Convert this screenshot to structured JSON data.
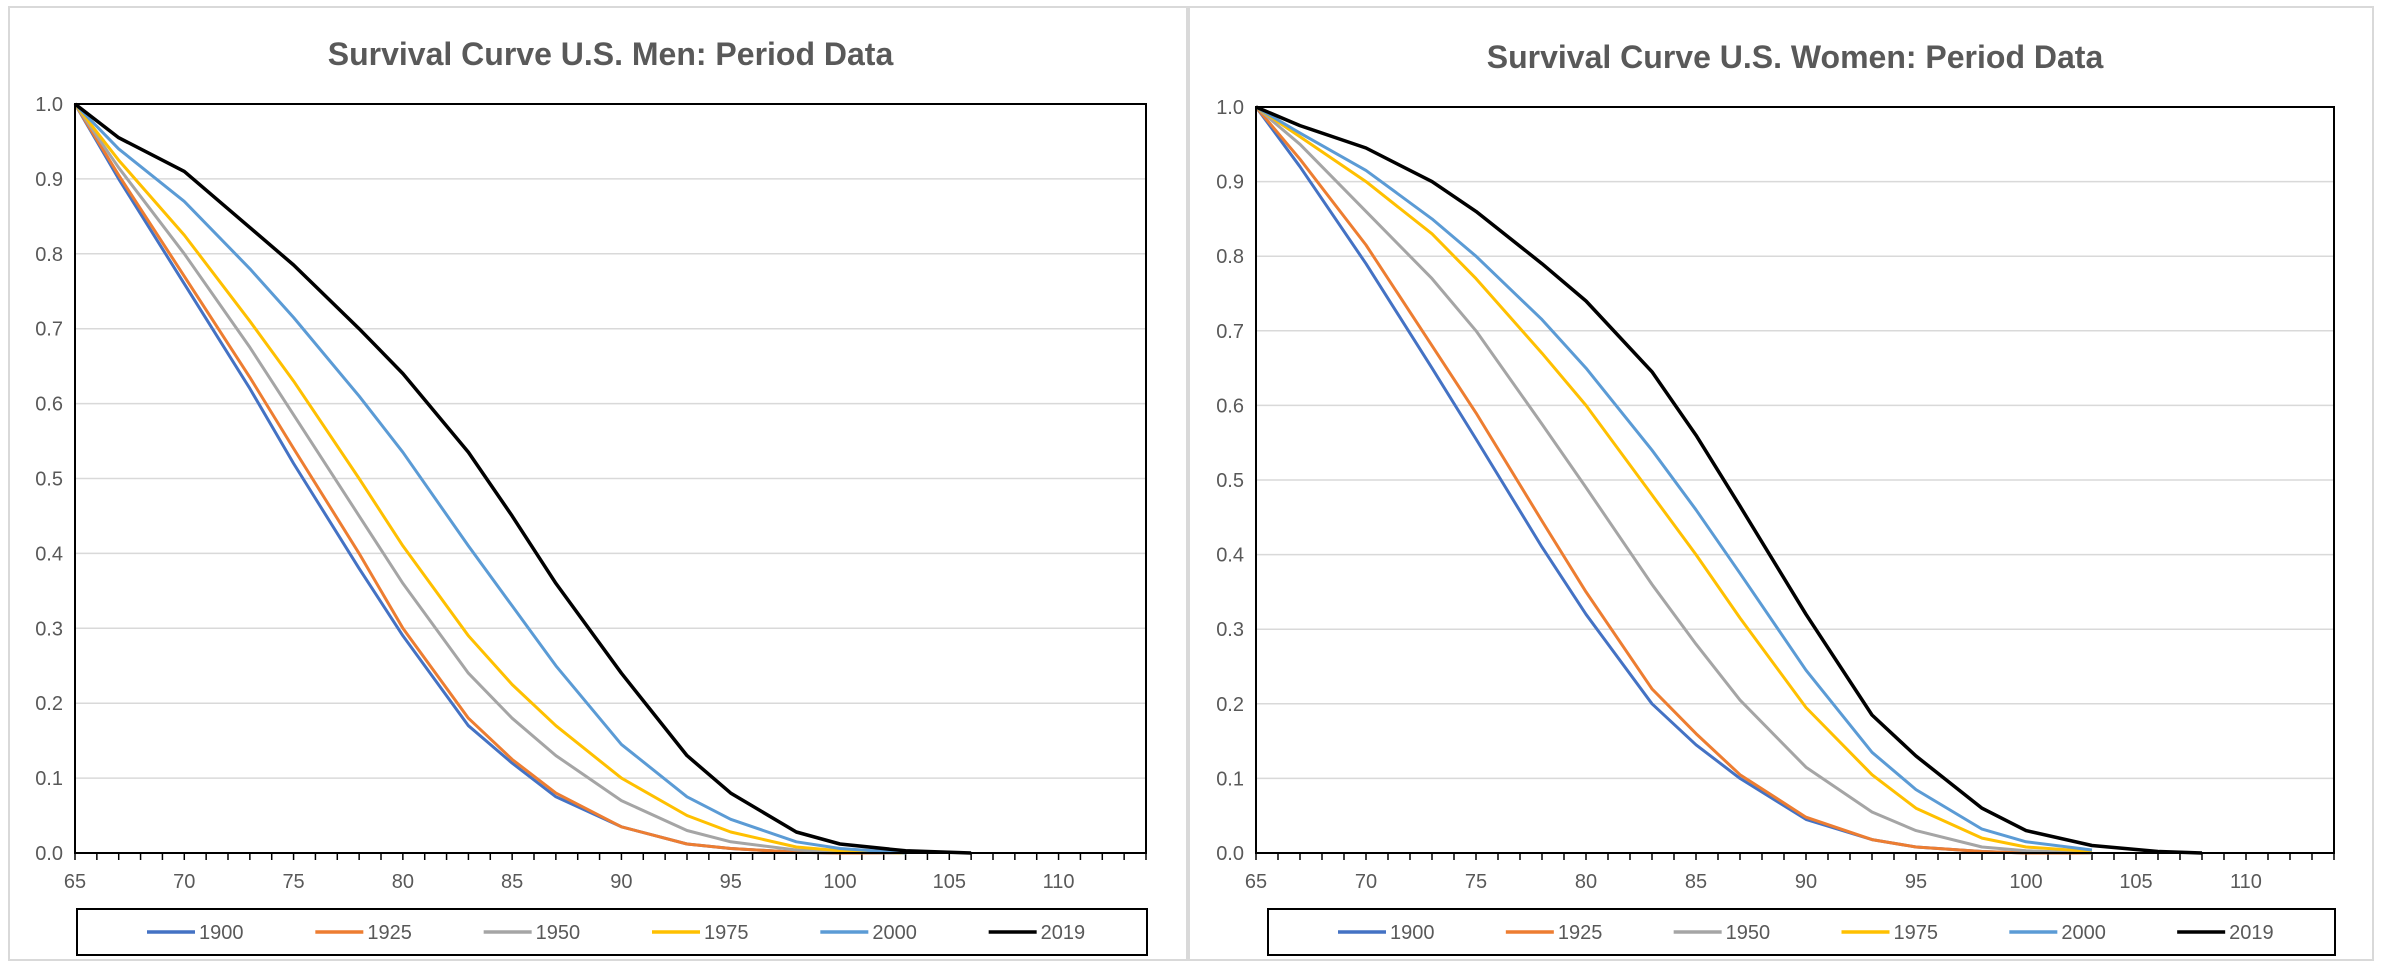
{
  "colors": {
    "1900": "#4472c4",
    "1925": "#ed7d31",
    "1950": "#a5a5a5",
    "1975": "#ffc000",
    "2000": "#5b9bd5",
    "2019": "#000000",
    "gridline": "#d9d9d9",
    "axis": "#000000",
    "title": "#595959",
    "tick_label": "#595959"
  },
  "chart_data": [
    {
      "type": "line",
      "title": "Survival Curve U.S. Men: Period Data",
      "xlabel": "",
      "ylabel": "",
      "xlim": [
        65,
        114
      ],
      "ylim": [
        0,
        1
      ],
      "x_ticks": [
        65,
        70,
        75,
        80,
        85,
        90,
        95,
        100,
        105,
        110
      ],
      "y_ticks": [
        "0.0",
        "0.1",
        "0.2",
        "0.3",
        "0.4",
        "0.5",
        "0.6",
        "0.7",
        "0.8",
        "0.9",
        "1.0"
      ],
      "grid": "horizontal",
      "legend_position": "bottom",
      "series": [
        {
          "name": "1900",
          "x": [
            65,
            67,
            70,
            73,
            75,
            78,
            80,
            83,
            85,
            87,
            90,
            93,
            95,
            98,
            100,
            103
          ],
          "values": [
            1.0,
            0.9,
            0.76,
            0.62,
            0.52,
            0.38,
            0.29,
            0.17,
            0.12,
            0.075,
            0.035,
            0.012,
            0.006,
            0.001,
            0.0,
            0.0
          ]
        },
        {
          "name": "1925",
          "x": [
            65,
            67,
            70,
            73,
            75,
            78,
            80,
            83,
            85,
            87,
            90,
            93,
            95,
            98,
            100,
            103
          ],
          "values": [
            1.0,
            0.905,
            0.77,
            0.635,
            0.54,
            0.4,
            0.3,
            0.18,
            0.125,
            0.08,
            0.035,
            0.012,
            0.006,
            0.001,
            0.0,
            0.0
          ]
        },
        {
          "name": "1950",
          "x": [
            65,
            67,
            70,
            73,
            75,
            78,
            80,
            83,
            85,
            87,
            90,
            93,
            95,
            98,
            100,
            103
          ],
          "values": [
            1.0,
            0.915,
            0.8,
            0.675,
            0.585,
            0.45,
            0.36,
            0.24,
            0.18,
            0.13,
            0.07,
            0.03,
            0.015,
            0.004,
            0.001,
            0.0
          ]
        },
        {
          "name": "1975",
          "x": [
            65,
            67,
            70,
            73,
            75,
            78,
            80,
            83,
            85,
            87,
            90,
            93,
            95,
            98,
            100,
            103
          ],
          "values": [
            1.0,
            0.925,
            0.825,
            0.71,
            0.63,
            0.5,
            0.41,
            0.29,
            0.225,
            0.17,
            0.1,
            0.05,
            0.028,
            0.008,
            0.003,
            0.0
          ]
        },
        {
          "name": "2000",
          "x": [
            65,
            67,
            70,
            73,
            75,
            78,
            80,
            83,
            85,
            87,
            90,
            93,
            95,
            98,
            100,
            103
          ],
          "values": [
            1.0,
            0.94,
            0.87,
            0.78,
            0.715,
            0.61,
            0.535,
            0.41,
            0.33,
            0.25,
            0.145,
            0.075,
            0.045,
            0.015,
            0.006,
            0.0
          ]
        },
        {
          "name": "2019",
          "x": [
            65,
            67,
            70,
            73,
            75,
            78,
            80,
            83,
            85,
            87,
            90,
            93,
            95,
            98,
            100,
            103,
            106
          ],
          "values": [
            1.0,
            0.955,
            0.91,
            0.835,
            0.785,
            0.7,
            0.64,
            0.535,
            0.45,
            0.36,
            0.24,
            0.13,
            0.08,
            0.028,
            0.012,
            0.003,
            0.0
          ]
        }
      ]
    },
    {
      "type": "line",
      "title": "Survival Curve U.S. Women: Period Data",
      "xlabel": "",
      "ylabel": "",
      "xlim": [
        65,
        114
      ],
      "ylim": [
        0,
        1
      ],
      "x_ticks": [
        65,
        70,
        75,
        80,
        85,
        90,
        95,
        100,
        105,
        110
      ],
      "y_ticks": [
        "0.0",
        "0.1",
        "0.2",
        "0.3",
        "0.4",
        "0.5",
        "0.6",
        "0.7",
        "0.8",
        "0.9",
        "1.0"
      ],
      "grid": "horizontal",
      "legend_position": "bottom",
      "series": [
        {
          "name": "1900",
          "x": [
            65,
            67,
            70,
            73,
            75,
            78,
            80,
            83,
            85,
            87,
            90,
            93,
            95,
            98,
            100,
            103
          ],
          "values": [
            1.0,
            0.92,
            0.79,
            0.65,
            0.555,
            0.41,
            0.32,
            0.2,
            0.145,
            0.1,
            0.045,
            0.018,
            0.008,
            0.002,
            0.0,
            0.0
          ]
        },
        {
          "name": "1925",
          "x": [
            65,
            67,
            70,
            73,
            75,
            78,
            80,
            83,
            85,
            87,
            90,
            93,
            95,
            98,
            100,
            103
          ],
          "values": [
            1.0,
            0.93,
            0.815,
            0.68,
            0.59,
            0.445,
            0.35,
            0.22,
            0.16,
            0.105,
            0.048,
            0.018,
            0.008,
            0.002,
            0.0,
            0.0
          ]
        },
        {
          "name": "1950",
          "x": [
            65,
            67,
            70,
            73,
            75,
            78,
            80,
            83,
            85,
            87,
            90,
            93,
            95,
            98,
            100,
            103
          ],
          "values": [
            1.0,
            0.95,
            0.86,
            0.77,
            0.7,
            0.575,
            0.49,
            0.36,
            0.28,
            0.205,
            0.115,
            0.055,
            0.03,
            0.008,
            0.003,
            0.0
          ]
        },
        {
          "name": "1975",
          "x": [
            65,
            67,
            70,
            73,
            75,
            78,
            80,
            83,
            85,
            87,
            90,
            93,
            95,
            98,
            100,
            103
          ],
          "values": [
            1.0,
            0.96,
            0.9,
            0.83,
            0.77,
            0.67,
            0.6,
            0.48,
            0.4,
            0.315,
            0.195,
            0.105,
            0.06,
            0.02,
            0.008,
            0.002
          ]
        },
        {
          "name": "2000",
          "x": [
            65,
            67,
            70,
            73,
            75,
            78,
            80,
            83,
            85,
            87,
            90,
            93,
            95,
            98,
            100,
            103
          ],
          "values": [
            1.0,
            0.965,
            0.915,
            0.85,
            0.8,
            0.715,
            0.65,
            0.54,
            0.46,
            0.375,
            0.245,
            0.135,
            0.085,
            0.032,
            0.015,
            0.004
          ]
        },
        {
          "name": "2019",
          "x": [
            65,
            67,
            70,
            73,
            75,
            78,
            80,
            83,
            85,
            87,
            90,
            93,
            95,
            98,
            100,
            103,
            106,
            108
          ],
          "values": [
            1.0,
            0.975,
            0.945,
            0.9,
            0.86,
            0.79,
            0.74,
            0.645,
            0.56,
            0.465,
            0.32,
            0.185,
            0.13,
            0.06,
            0.03,
            0.01,
            0.002,
            0.0
          ]
        }
      ]
    }
  ]
}
